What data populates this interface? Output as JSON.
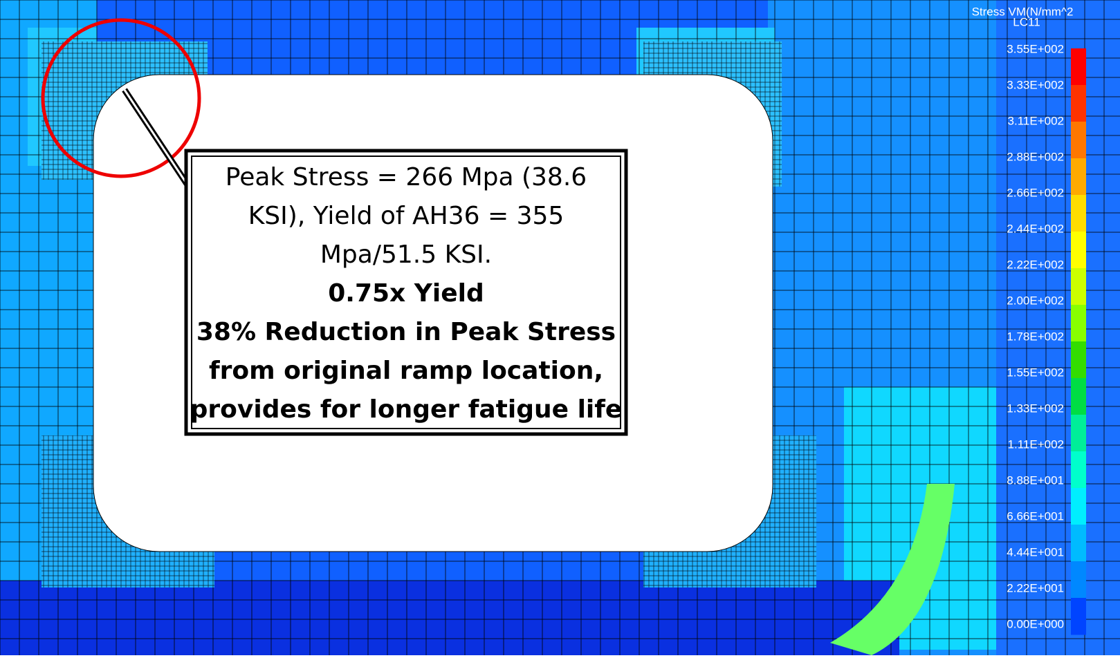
{
  "legend": {
    "title": "Stress VM(N/mm^2",
    "subtitle": "LC11",
    "labels": [
      "3.55E+002",
      "3.33E+002",
      "3.11E+002",
      "2.88E+002",
      "2.66E+002",
      "2.44E+002",
      "2.22E+002",
      "2.00E+002",
      "1.78E+002",
      "1.55E+002",
      "1.33E+002",
      "1.11E+002",
      "8.88E+001",
      "6.66E+001",
      "4.44E+001",
      "2.22E+001",
      "0.00E+000"
    ],
    "colors": [
      "#ff0000",
      "#ff3300",
      "#ff7700",
      "#ffaa00",
      "#ffdd00",
      "#ffff00",
      "#ccff00",
      "#88ff00",
      "#33dd00",
      "#00dd44",
      "#00ee99",
      "#00ffcc",
      "#00eeff",
      "#00bbff",
      "#0088ff",
      "#0044ff"
    ]
  },
  "callout": {
    "lines": [
      "Peak Stress = 266 Mpa (38.6",
      "KSI), Yield of AH36 = 355",
      "Mpa/51.5 KSI."
    ],
    "bold_lines": [
      "0.75x Yield",
      "38% Reduction in Peak Stress",
      "from original ramp location,",
      "provides for longer fatigue life"
    ]
  }
}
